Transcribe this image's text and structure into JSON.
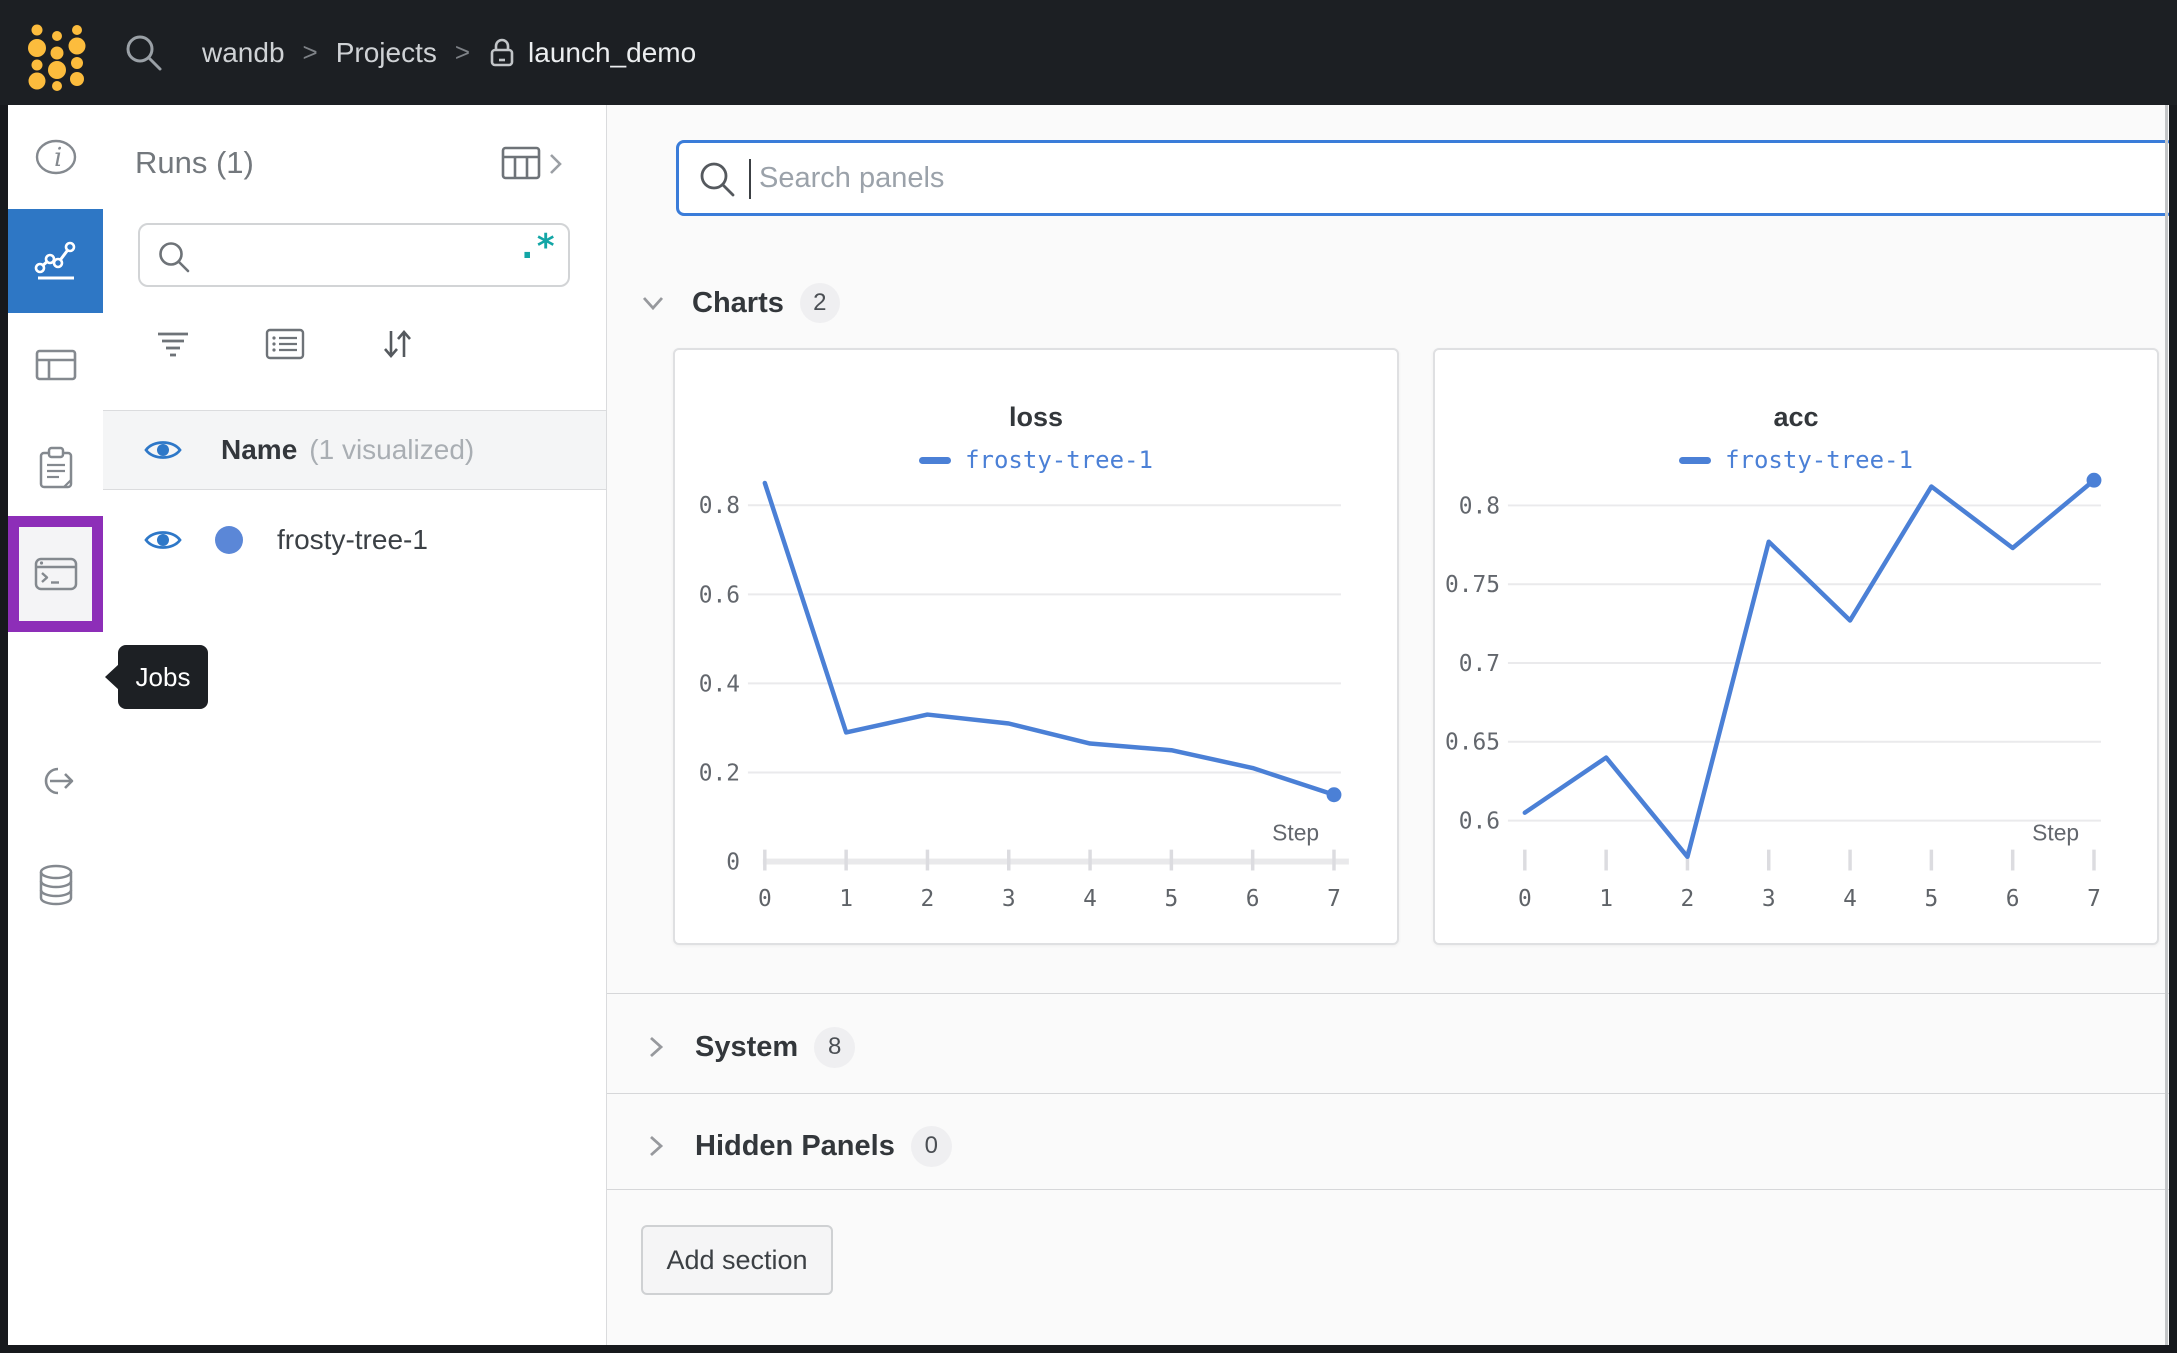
{
  "navbar": {
    "breadcrumb": [
      "wandb",
      "Projects",
      "launch_demo"
    ],
    "separator": ">"
  },
  "sidebar": {
    "tooltip": "Jobs",
    "items": [
      "overview",
      "workspace-charts",
      "table",
      "reports",
      "sweeps",
      "jobs",
      "automations",
      "artifacts"
    ]
  },
  "runs_panel": {
    "title": "Runs (1)",
    "search_value": "",
    "icons": {
      "regex": ".*"
    },
    "header": {
      "name": "Name",
      "visualized": "(1 visualized)"
    },
    "runs": [
      {
        "name": "frosty-tree-1",
        "dot_color": "#5b87d7"
      }
    ]
  },
  "main": {
    "search": {
      "placeholder": "Search panels",
      "value": ""
    },
    "sections": {
      "charts": {
        "label": "Charts",
        "count": "2"
      },
      "system": {
        "label": "System",
        "count": "8"
      },
      "hidden": {
        "label": "Hidden Panels",
        "count": "0"
      }
    },
    "add_section": "Add section"
  },
  "colors": {
    "accent_blue": "#2e77c5",
    "line_blue": "#4b80d6",
    "purple_highlight": "#8d2eb8",
    "regex_teal": "#13a6a6",
    "logo_gold": "#fcbc3d"
  },
  "chart_data": [
    {
      "type": "line",
      "title": "loss",
      "xlabel": "Step",
      "x": [
        0,
        1,
        2,
        3,
        4,
        5,
        6,
        7
      ],
      "series": [
        {
          "name": "frosty-tree-1",
          "values": [
            0.85,
            0.29,
            0.33,
            0.31,
            0.265,
            0.25,
            0.21,
            0.15
          ]
        }
      ],
      "ylim": [
        0,
        0.881
      ],
      "yticks": [
        0,
        0.2,
        0.4,
        0.6,
        0.8
      ],
      "ytick_labels": [
        "0",
        "0.2",
        "0.4",
        "0.6",
        "0.8"
      ],
      "axis_line": true,
      "grid": true,
      "legend_position": "top",
      "color": "#4b80d6",
      "end_marker": true
    },
    {
      "type": "line",
      "title": "acc",
      "xlabel": "Step",
      "x": [
        0,
        1,
        2,
        3,
        4,
        5,
        6,
        7
      ],
      "series": [
        {
          "name": "frosty-tree-1",
          "values": [
            0.605,
            0.64,
            0.577,
            0.777,
            0.727,
            0.812,
            0.773,
            0.816
          ]
        }
      ],
      "ylim": [
        0.574,
        0.823
      ],
      "yticks": [
        0.6,
        0.65,
        0.7,
        0.75,
        0.8
      ],
      "ytick_labels": [
        "0.6",
        "0.65",
        "0.7",
        "0.75",
        "0.8"
      ],
      "axis_line": false,
      "grid": true,
      "legend_position": "top",
      "color": "#4b80d6",
      "end_marker": true
    }
  ]
}
